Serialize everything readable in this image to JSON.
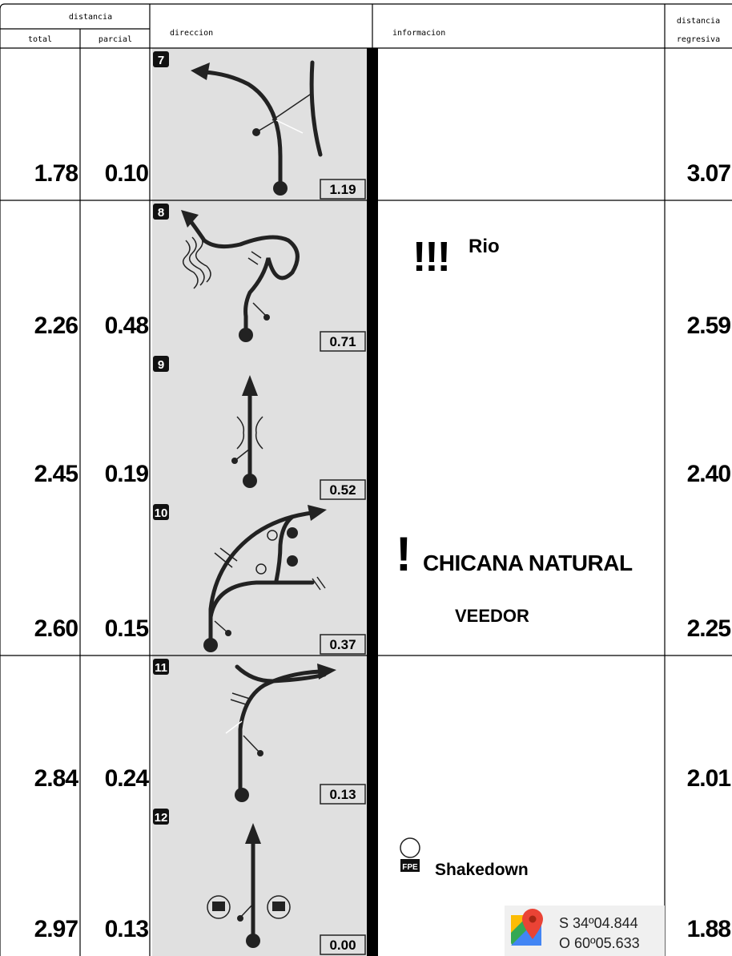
{
  "header": {
    "distancia": "distancia",
    "total": "total",
    "parcial": "parcial",
    "direccion": "direccion",
    "informacion": "informacion",
    "regresiva_1": "distancia",
    "regresiva_2": "regresiva"
  },
  "rows": [
    {
      "number": "7",
      "total": "1.78",
      "parcial": "0.10",
      "box": "1.19",
      "regresiva": "3.07"
    },
    {
      "number": "8",
      "total": "2.26",
      "parcial": "0.48",
      "box": "0.71",
      "regresiva": "2.59"
    },
    {
      "number": "9",
      "total": "2.45",
      "parcial": "0.19",
      "box": "0.52",
      "regresiva": "2.40"
    },
    {
      "number": "10",
      "total": "2.60",
      "parcial": "0.15",
      "box": "0.37",
      "regresiva": "2.25"
    },
    {
      "number": "11",
      "total": "2.84",
      "parcial": "0.24",
      "box": "0.13",
      "regresiva": "2.01"
    },
    {
      "number": "12",
      "total": "2.97",
      "parcial": "0.13",
      "box": "0.00",
      "regresiva": "1.88"
    }
  ],
  "info": {
    "danger_3": "!!!",
    "rio": "Rio",
    "danger_1": "!",
    "chicana": "CHICANA NATURAL",
    "veedor": "VEEDOR",
    "fpe": "FPE",
    "shakedown": "Shakedown",
    "lat": "S 34º04.844",
    "lon": "O 60º05.633"
  }
}
